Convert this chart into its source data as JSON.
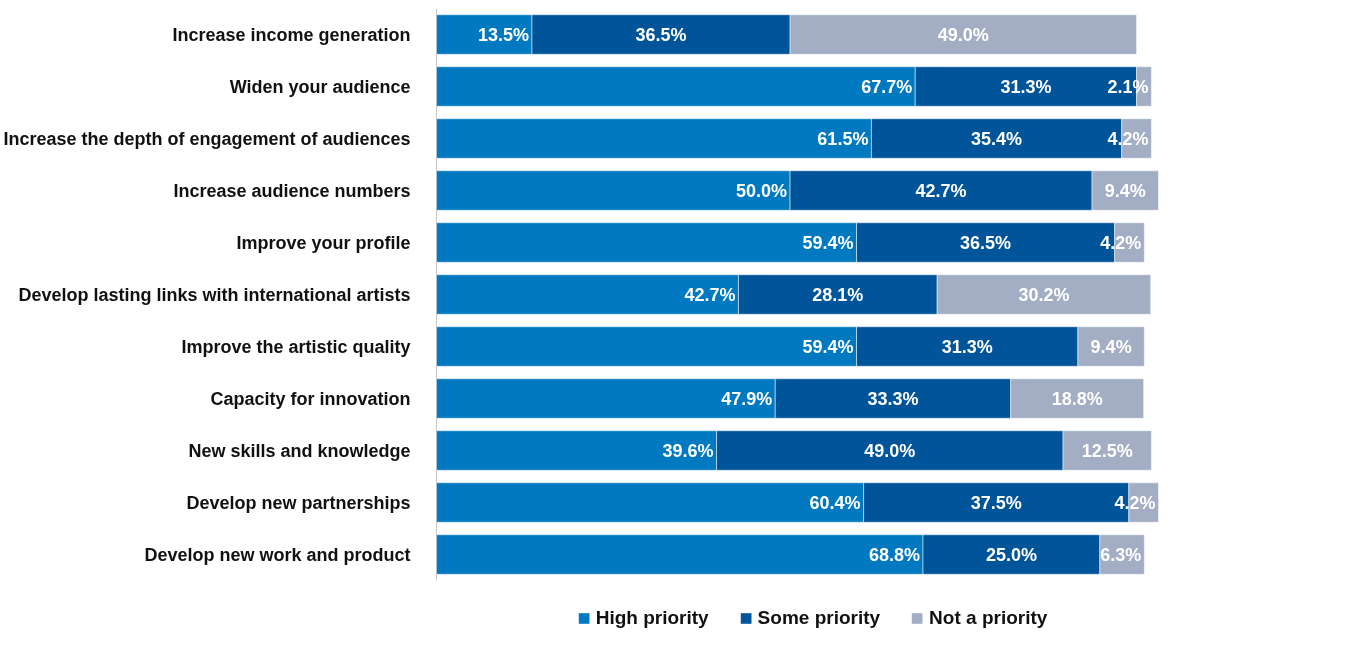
{
  "chart_data": {
    "type": "bar",
    "orientation": "horizontal",
    "stacked": true,
    "data_labels": true,
    "legend": "bottom",
    "grid": false,
    "categories": [
      "Increase income generation",
      "Widen your audience",
      "Increase the depth of engagement of audiences",
      "Increase audience numbers",
      "Improve your profile",
      "Develop lasting links with international artists",
      "Improve the artistic quality",
      "Capacity for innovation",
      "New skills and knowledge",
      "Develop new partnerships",
      "Develop new work and product"
    ],
    "series": [
      {
        "name": "High priority",
        "color": "#0079c1",
        "values": [
          13.5,
          67.7,
          61.5,
          50.0,
          59.4,
          42.7,
          59.4,
          47.9,
          39.6,
          60.4,
          68.8
        ],
        "value_labels": [
          "13.5%",
          "67.7%",
          "61.5%",
          "50.0%",
          "59.4%",
          "42.7%",
          "59.4%",
          "47.9%",
          "39.6%",
          "60.4%",
          "68.8%"
        ]
      },
      {
        "name": "Some priority",
        "color": "#00549a",
        "values": [
          36.5,
          31.3,
          35.4,
          42.7,
          36.5,
          28.1,
          31.3,
          33.3,
          49.0,
          37.5,
          25.0
        ],
        "value_labels": [
          "36.5%",
          "31.3%",
          "35.4%",
          "42.7%",
          "36.5%",
          "28.1%",
          "31.3%",
          "33.3%",
          "49.0%",
          "37.5%",
          "25.0%"
        ]
      },
      {
        "name": "Not a priority",
        "color": "#a3aec5",
        "values": [
          49.0,
          2.1,
          4.2,
          9.4,
          4.2,
          30.2,
          9.4,
          18.8,
          12.5,
          4.2,
          6.3
        ],
        "value_labels": [
          "49.0%",
          "2.1%",
          "4.2%",
          "9.4%",
          "4.2%",
          "30.2%",
          "9.4%",
          "18.8%",
          "12.5%",
          "4.2%",
          "6.3%"
        ]
      }
    ]
  }
}
